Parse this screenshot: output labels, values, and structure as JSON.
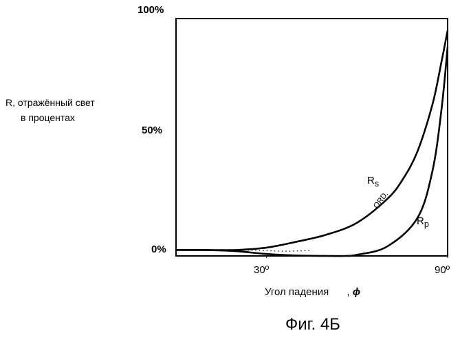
{
  "figure_caption": "Фиг. 4Б",
  "chart_data": {
    "type": "line",
    "ylabel_line1": "R, отражённый свет",
    "ylabel_line2": "в процентах",
    "xlabel": "Угол падения",
    "xlabel_symbol": "ϕ",
    "y_ticks": [
      "0%",
      "50%",
      "100%"
    ],
    "x_ticks": [
      "30º",
      "90º"
    ],
    "x_tick_values": [
      30,
      90
    ],
    "y_tick_values": [
      0,
      50,
      100
    ],
    "xlim": [
      0,
      90
    ],
    "ylim": [
      0,
      100
    ],
    "grid": false,
    "series": [
      {
        "name": "Rs",
        "label_main": "R",
        "label_sub": "s",
        "style": "solid",
        "x": [
          0,
          10,
          20,
          30,
          40,
          50,
          60,
          70,
          75,
          80,
          85,
          88,
          90
        ],
        "y": [
          2.5,
          2.5,
          2.5,
          3.5,
          6,
          9,
          14,
          24,
          32,
          44,
          64,
          82,
          95
        ]
      },
      {
        "name": "Rp",
        "label_main": "R",
        "label_sub": "p",
        "style": "solid",
        "x": [
          0,
          10,
          20,
          30,
          40,
          50,
          56,
          60,
          70,
          80,
          85,
          88,
          90
        ],
        "y": [
          2.5,
          2.5,
          2,
          0.8,
          0.2,
          0,
          0,
          0.5,
          4,
          16,
          36,
          62,
          88
        ]
      },
      {
        "name": "ORD",
        "label_main": "ORD.",
        "label_sub": "",
        "style": "dotted",
        "x": [
          20,
          25,
          30,
          35,
          40,
          45
        ],
        "y": [
          2.5,
          2.4,
          2.2,
          2.0,
          2.1,
          2.3
        ]
      }
    ]
  }
}
